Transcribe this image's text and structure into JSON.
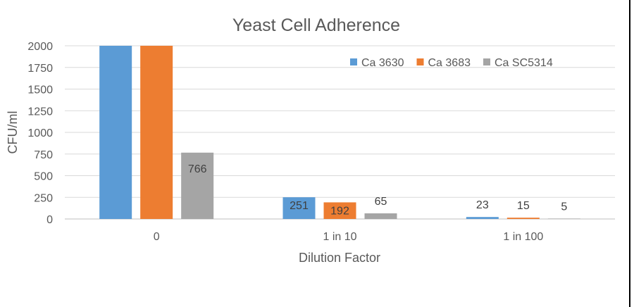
{
  "chart_data": {
    "type": "bar",
    "title": "Yeast Cell Adherence",
    "xlabel": "Dilution Factor",
    "ylabel": "CFU/ml",
    "categories": [
      "0",
      "1 in 10",
      "1 in 100"
    ],
    "ylim": [
      0,
      2000
    ],
    "yticks": [
      "0",
      "250",
      "500",
      "750",
      "1000",
      "1250",
      "1500",
      "1750",
      "2000"
    ],
    "grid": true,
    "legend_position": "top-right",
    "series": [
      {
        "name": "Ca 3630",
        "color": "#5B9BD5",
        "values": [
          2000,
          251,
          23
        ],
        "labels": [
          "",
          "251",
          "23"
        ]
      },
      {
        "name": "Ca 3683",
        "color": "#ED7D31",
        "values": [
          2000,
          192,
          15
        ],
        "labels": [
          "",
          "192",
          "15"
        ]
      },
      {
        "name": "Ca SC5314",
        "color": "#A5A5A5",
        "values": [
          766,
          65,
          5
        ],
        "labels": [
          "766",
          "65",
          "5"
        ]
      }
    ]
  }
}
